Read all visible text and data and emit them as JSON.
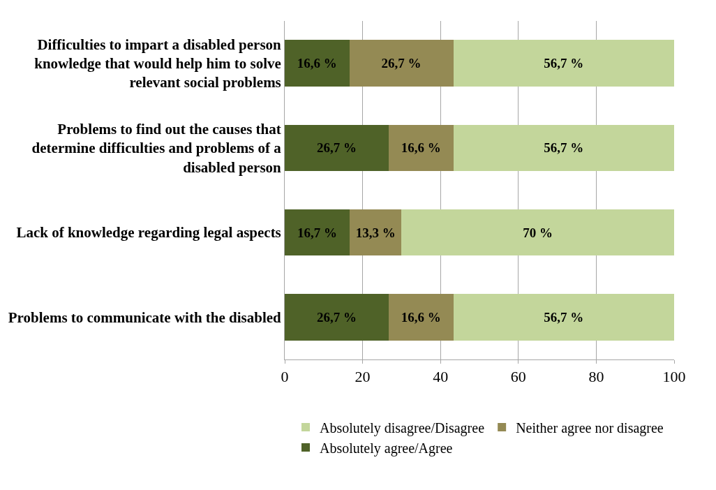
{
  "chart_data": {
    "type": "bar",
    "orientation": "horizontal",
    "stacked": true,
    "categories": [
      "Difficulties to impart a disabled person knowledge that would help him to solve relevant social problems",
      "Problems to find out the causes that determine difficulties and problems of a disabled person",
      "Lack of knowledge regarding legal aspects",
      "Problems to communicate with the disabled"
    ],
    "series": [
      {
        "name": "Absolutely agree/Agree",
        "color": "#4f6228",
        "values": [
          16.6,
          26.7,
          16.7,
          26.7
        ],
        "value_labels": [
          "16,6 %",
          "26,7 %",
          "16,7 %",
          "26,7 %"
        ]
      },
      {
        "name": "Neither agree nor disagree",
        "color": "#948a54",
        "values": [
          26.7,
          16.6,
          13.3,
          16.6
        ],
        "value_labels": [
          "26,7 %",
          "16,6 %",
          "13,3 %",
          "16,6 %"
        ]
      },
      {
        "name": "Absolutely disagree/Disagree",
        "color": "#c3d69b",
        "values": [
          56.7,
          56.7,
          70,
          56.7
        ],
        "value_labels": [
          "56,7 %",
          "56,7 %",
          "70 %",
          "56,7 %"
        ]
      }
    ],
    "xlim": [
      0,
      100
    ],
    "xticks": [
      0,
      20,
      40,
      60,
      80,
      100
    ],
    "grid": "x",
    "legend": "bottom"
  }
}
